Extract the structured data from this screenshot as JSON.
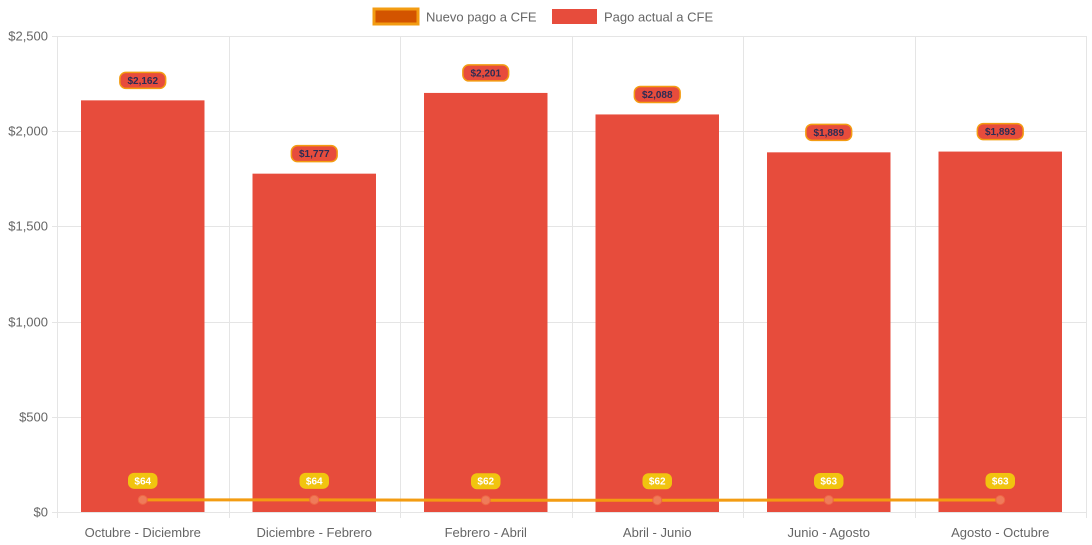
{
  "chart_data": {
    "type": "bar",
    "categories": [
      "Octubre - Diciembre",
      "Diciembre - Febrero",
      "Febrero - Abril",
      "Abril - Junio",
      "Junio - Agosto",
      "Agosto - Octubre"
    ],
    "series": [
      {
        "name": "Nuevo pago a CFE",
        "type": "line",
        "values": [
          64,
          64,
          62,
          62,
          63,
          63
        ],
        "labels": [
          "$64",
          "$64",
          "$62",
          "$62",
          "$63",
          "$63"
        ],
        "color": "#f39c12",
        "label_bg": "#f1c40f",
        "label_text_color": "#ffffff"
      },
      {
        "name": "Pago actual a CFE",
        "type": "bar",
        "values": [
          2162,
          1777,
          2201,
          2088,
          1889,
          1893
        ],
        "labels": [
          "$2,162",
          "$1,777",
          "$2,201",
          "$2,088",
          "$1,889",
          "$1,893"
        ],
        "color": "#e74c3c",
        "label_border": "#f39c12",
        "label_text_color": "#2c2c54"
      }
    ],
    "y_ticks": [
      0,
      500,
      1000,
      1500,
      2000,
      2500
    ],
    "y_tick_labels": [
      "$0",
      "$500",
      "$1,000",
      "$1,500",
      "$2,000",
      "$2,500"
    ],
    "ylim": [
      0,
      2500
    ],
    "legend": {
      "position": "top",
      "swatch_line_fill": "#d35400",
      "swatch_line_border": "#f39c12"
    },
    "grid": true,
    "grid_color": "#e5e5e5"
  }
}
